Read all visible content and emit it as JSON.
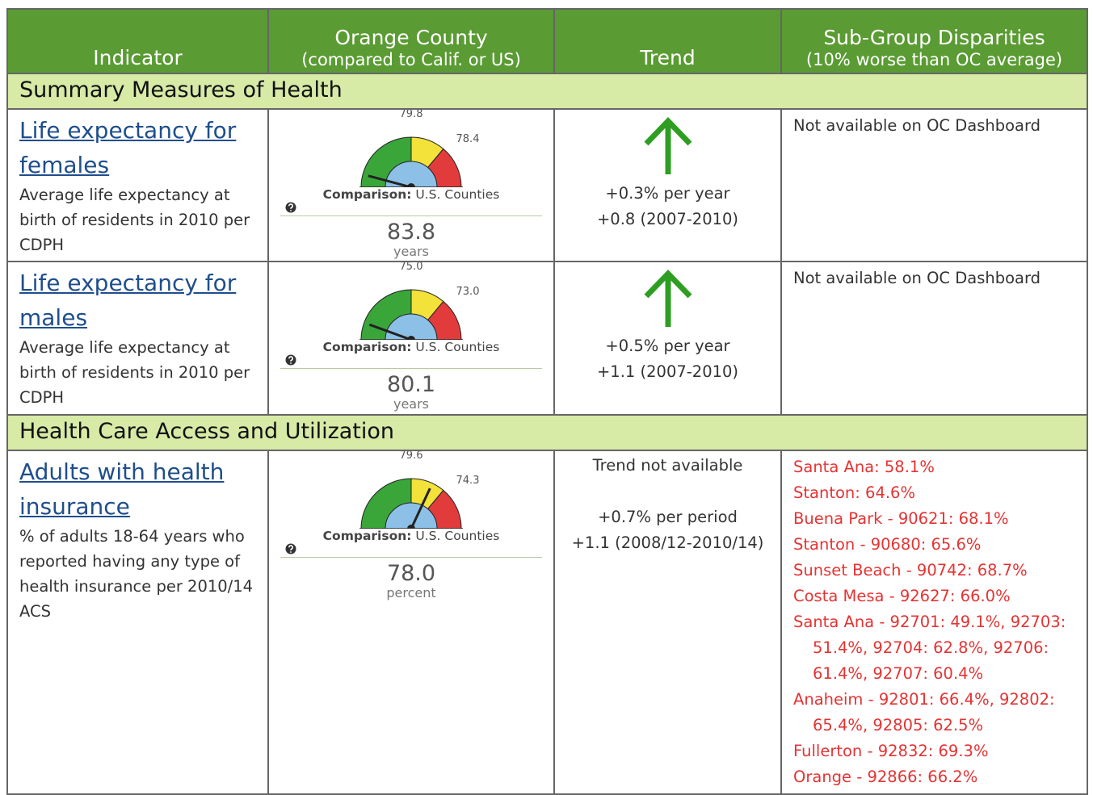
{
  "header": {
    "columns": [
      {
        "title": "Indicator"
      },
      {
        "title": "Orange County",
        "sub": "(compared to Calif. or US)"
      },
      {
        "title": "Trend"
      },
      {
        "title": "Sub-Group Disparities",
        "sub": "(10% worse than OC average)"
      }
    ]
  },
  "sections": [
    {
      "title": "Summary Measures of Health",
      "rows": [
        {
          "link": "Life expectancy for females",
          "description": "Average life expectancy at birth of residents in 2010 per CDPH",
          "gauge": {
            "top": "79.8",
            "right": "78.4",
            "comparison_label": "Comparison:",
            "comparison": "U.S. Counties",
            "value": "83.8",
            "unit": "years"
          },
          "trend": [
            "+0.3% per year",
            "+0.8 (2007-2010)"
          ],
          "disparities": [
            "Not available on OC Dashboard"
          ]
        },
        {
          "link": "Life expectancy for males",
          "description": "Average life expectancy at birth of residents in 2010 per CDPH",
          "gauge": {
            "top": "75.0",
            "right": "73.0",
            "comparison_label": "Comparison:",
            "comparison": "U.S. Counties",
            "value": "80.1",
            "unit": "years"
          },
          "trend": [
            "+0.5% per year",
            "+1.1 (2007-2010)"
          ],
          "disparities": [
            "Not available on OC Dashboard"
          ]
        }
      ]
    },
    {
      "title": "Health Care Access and Utilization",
      "rows": [
        {
          "link": "Adults with health insurance",
          "description": "% of adults 18-64 years who reported having any type of health insurance per 2010/14 ACS",
          "gauge": {
            "top": "79.6",
            "right": "74.3",
            "comparison_label": "Comparison:",
            "comparison": "U.S. Counties",
            "value": "78.0",
            "unit": "percent"
          },
          "trend_note": "Trend not available",
          "trend": [
            "+0.7% per period",
            "+1.1 (2008/12-2010/14)"
          ],
          "disparities": [
            "Santa Ana: 58.1%",
            "Stanton: 64.6%",
            "Buena Park - 90621: 68.1%",
            "Stanton - 90680: 65.6%",
            "Sunset Beach - 90742: 68.7%",
            "Costa Mesa - 92627: 66.0%",
            "Santa Ana - 92701: 49.1%, 92703: 51.4%, 92704: 62.8%, 92706: 61.4%, 92707: 60.4%",
            "Anaheim - 92801: 66.4%, 92802: 65.4%, 92805: 62.5%",
            "Fullerton - 92832: 69.3%",
            "Orange - 92866: 66.2%"
          ]
        }
      ]
    }
  ]
}
